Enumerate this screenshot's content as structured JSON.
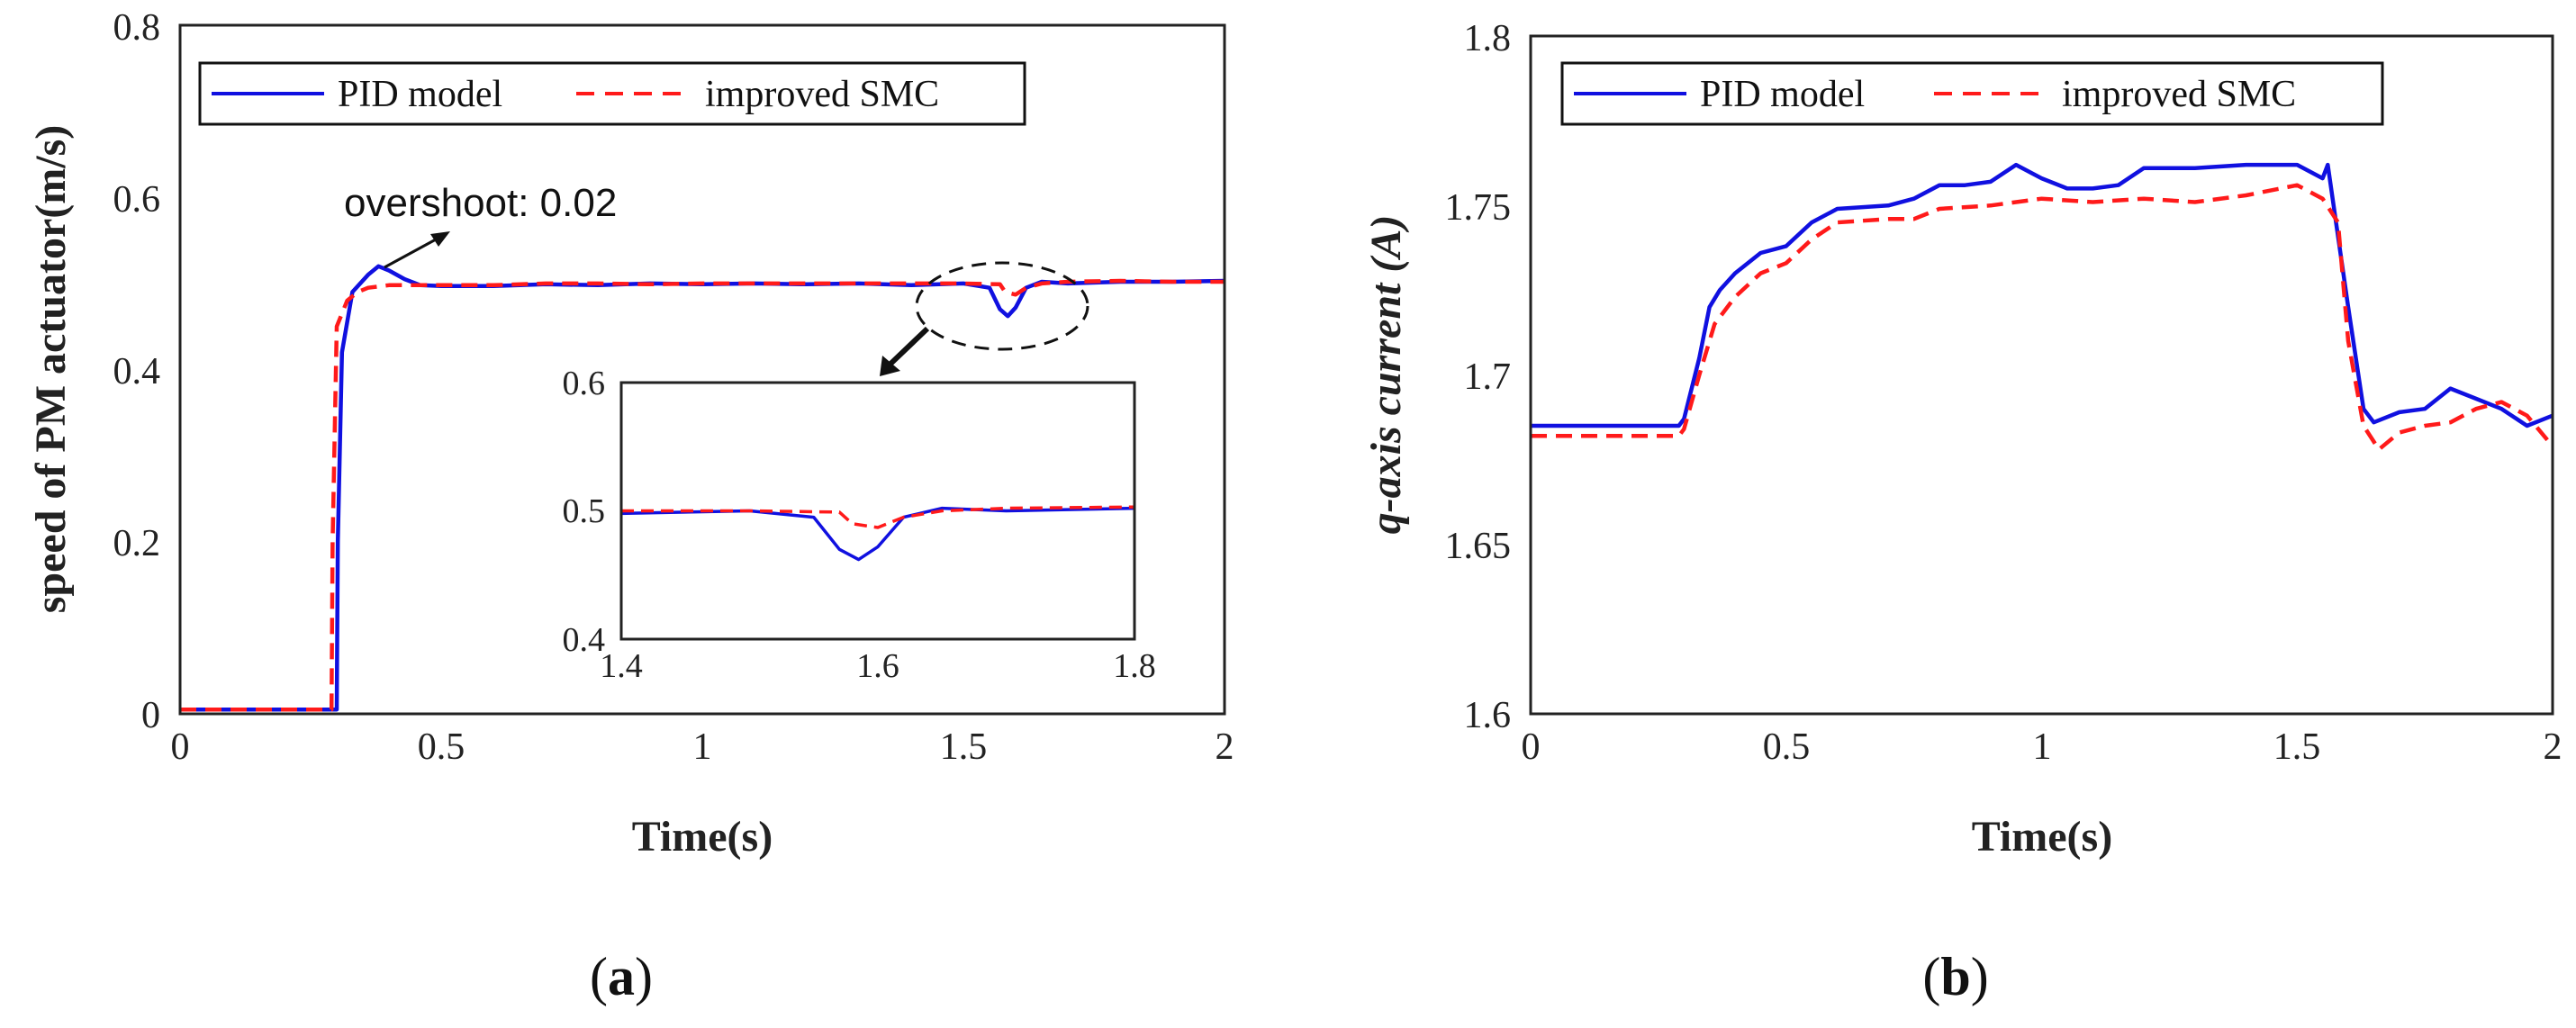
{
  "chart_data": [
    {
      "type": "line",
      "panel": "(a)",
      "panel_letter": "a",
      "xlabel": "Time(s)",
      "ylabel": "speed of PM actuator(m/s)",
      "xlim": [
        0,
        2
      ],
      "ylim": [
        0,
        0.8
      ],
      "xticks": [
        "0",
        "0.5",
        "1",
        "1.5",
        "2"
      ],
      "yticks": [
        "0",
        "0.2",
        "0.4",
        "0.6",
        "0.8"
      ],
      "legend": [
        "PID model",
        "improved SMC"
      ],
      "annotation": "overshoot: 0.02",
      "series": [
        {
          "name": "PID model",
          "color": "#1010e0",
          "style": "solid",
          "x": [
            0,
            0.3,
            0.302,
            0.31,
            0.33,
            0.36,
            0.38,
            0.4,
            0.43,
            0.46,
            0.5,
            0.6,
            0.7,
            0.8,
            0.9,
            1.0,
            1.1,
            1.2,
            1.3,
            1.4,
            1.5,
            1.55,
            1.57,
            1.585,
            1.6,
            1.62,
            1.65,
            1.7,
            1.8,
            1.9,
            2.0
          ],
          "y": [
            0.005,
            0.005,
            0.2,
            0.42,
            0.49,
            0.51,
            0.52,
            0.515,
            0.505,
            0.498,
            0.497,
            0.497,
            0.499,
            0.498,
            0.5,
            0.499,
            0.5,
            0.499,
            0.5,
            0.498,
            0.5,
            0.495,
            0.47,
            0.462,
            0.472,
            0.495,
            0.502,
            0.5,
            0.502,
            0.502,
            0.503
          ]
        },
        {
          "name": "improved SMC",
          "color": "#ff1a1a",
          "style": "dashed",
          "x": [
            0,
            0.29,
            0.292,
            0.3,
            0.32,
            0.34,
            0.36,
            0.4,
            0.5,
            0.6,
            0.7,
            0.8,
            0.9,
            1.0,
            1.1,
            1.2,
            1.3,
            1.4,
            1.5,
            1.57,
            1.58,
            1.6,
            1.62,
            1.65,
            1.7,
            1.8,
            1.9,
            2.0
          ],
          "y": [
            0.005,
            0.005,
            0.2,
            0.45,
            0.48,
            0.49,
            0.495,
            0.498,
            0.498,
            0.498,
            0.5,
            0.5,
            0.499,
            0.5,
            0.5,
            0.5,
            0.5,
            0.5,
            0.5,
            0.499,
            0.49,
            0.487,
            0.495,
            0.5,
            0.502,
            0.503,
            0.502,
            0.502
          ]
        }
      ],
      "inset": {
        "xlim": [
          1.4,
          1.8
        ],
        "ylim": [
          0.4,
          0.6
        ],
        "xticks": [
          "1.4",
          "1.6",
          "1.8"
        ],
        "yticks": [
          "0.4",
          "0.5",
          "0.6"
        ]
      }
    },
    {
      "type": "line",
      "panel": "(b)",
      "panel_letter": "b",
      "xlabel": "Time(s)",
      "ylabel": "q-axis current (A)",
      "xlim": [
        0,
        2
      ],
      "ylim": [
        1.6,
        1.8
      ],
      "xticks": [
        "0",
        "0.5",
        "1",
        "1.5",
        "2"
      ],
      "yticks": [
        "1.6",
        "1.65",
        "1.7",
        "1.75",
        "1.8"
      ],
      "legend": [
        "PID model",
        "improved SMC"
      ],
      "series": [
        {
          "name": "PID model",
          "color": "#1010e0",
          "style": "solid",
          "x": [
            0,
            0.29,
            0.3,
            0.33,
            0.35,
            0.37,
            0.4,
            0.45,
            0.5,
            0.55,
            0.6,
            0.7,
            0.75,
            0.8,
            0.85,
            0.9,
            0.95,
            1.0,
            1.05,
            1.1,
            1.15,
            1.2,
            1.3,
            1.4,
            1.5,
            1.55,
            1.56,
            1.6,
            1.63,
            1.65,
            1.7,
            1.75,
            1.8,
            1.85,
            1.9,
            1.95,
            2.0
          ],
          "y": [
            1.685,
            1.685,
            1.687,
            1.705,
            1.72,
            1.725,
            1.73,
            1.736,
            1.738,
            1.745,
            1.749,
            1.75,
            1.752,
            1.756,
            1.756,
            1.757,
            1.762,
            1.758,
            1.755,
            1.755,
            1.756,
            1.761,
            1.761,
            1.762,
            1.762,
            1.758,
            1.762,
            1.72,
            1.69,
            1.686,
            1.689,
            1.69,
            1.696,
            1.693,
            1.69,
            1.685,
            1.688
          ]
        },
        {
          "name": "improved SMC",
          "color": "#ff1a1a",
          "style": "dashed",
          "x": [
            0,
            0.29,
            0.3,
            0.33,
            0.36,
            0.4,
            0.45,
            0.5,
            0.55,
            0.6,
            0.7,
            0.75,
            0.8,
            0.9,
            1.0,
            1.1,
            1.2,
            1.3,
            1.4,
            1.5,
            1.55,
            1.58,
            1.6,
            1.63,
            1.66,
            1.7,
            1.75,
            1.8,
            1.85,
            1.9,
            1.95,
            2.0
          ],
          "y": [
            1.682,
            1.682,
            1.684,
            1.7,
            1.715,
            1.723,
            1.73,
            1.733,
            1.74,
            1.745,
            1.746,
            1.746,
            1.749,
            1.75,
            1.752,
            1.751,
            1.752,
            1.751,
            1.753,
            1.756,
            1.752,
            1.745,
            1.71,
            1.685,
            1.678,
            1.683,
            1.685,
            1.686,
            1.69,
            1.692,
            1.688,
            1.679
          ]
        }
      ]
    }
  ]
}
